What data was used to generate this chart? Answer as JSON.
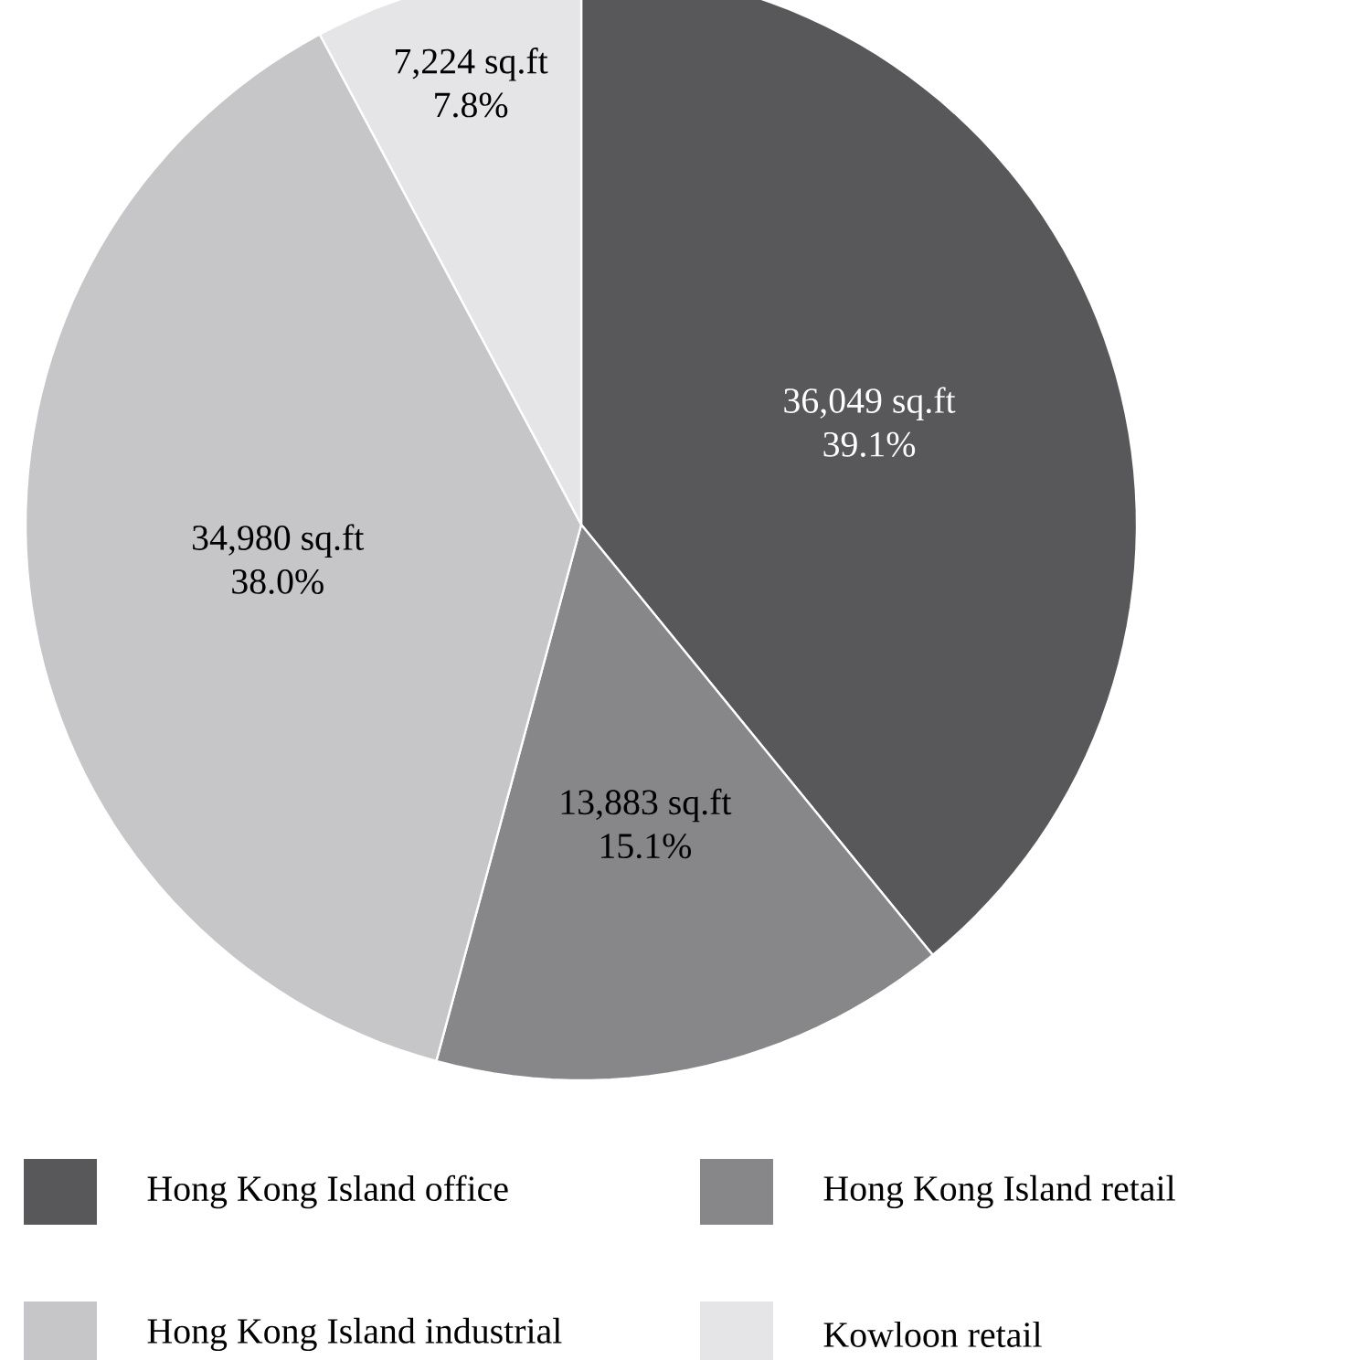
{
  "chart_data": {
    "type": "pie",
    "categories": [
      "Hong Kong Island office",
      "Hong Kong Island retail",
      "Hong Kong Island industrial",
      "Kowloon retail"
    ],
    "values": [
      39.1,
      15.1,
      38.0,
      7.8
    ],
    "colors": [
      "#58585a",
      "#87878a",
      "#c6c6c8",
      "#e5e5e7"
    ],
    "value_labels": [
      [
        "36,049 sq.ft",
        "39.1%"
      ],
      [
        "13,883 sq.ft",
        "15.1%"
      ],
      [
        "34,980 sq.ft",
        "38.0%"
      ],
      [
        "7,224 sq.ft",
        "7.8%"
      ]
    ],
    "legend": "bottom"
  }
}
